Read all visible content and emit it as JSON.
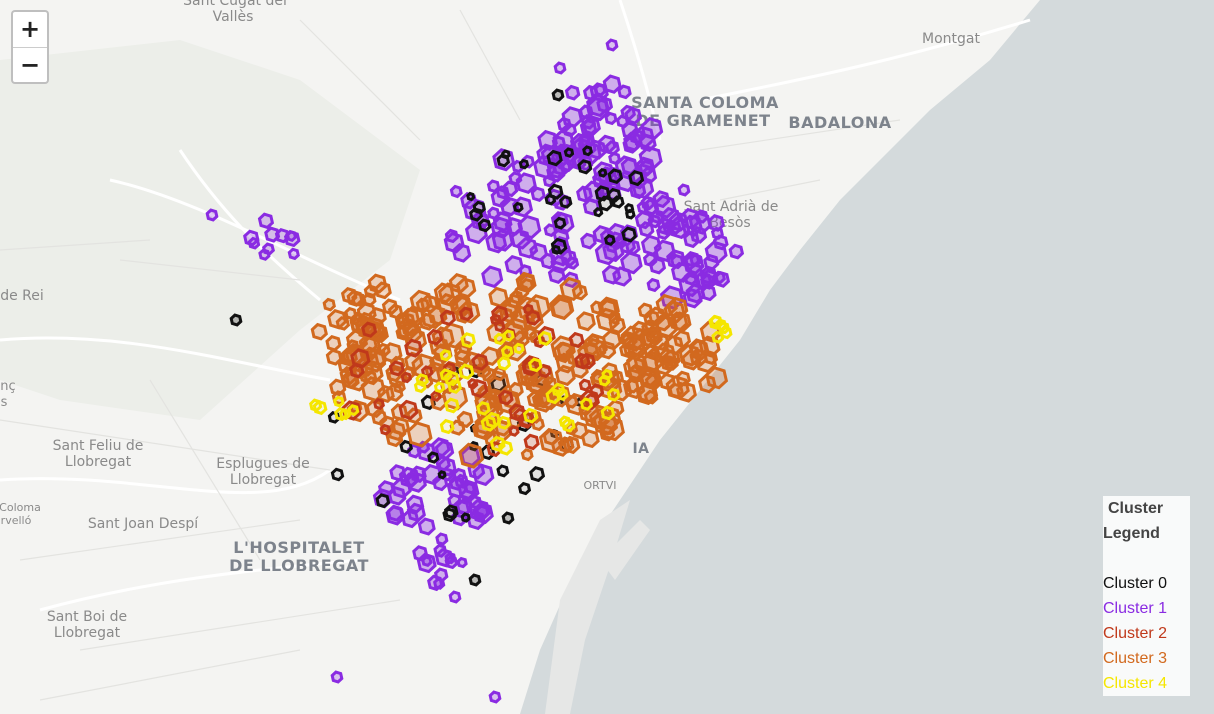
{
  "zoom": {
    "in_label": "+",
    "out_label": "−"
  },
  "places": {
    "sant_cugat": "Sant Cugat del",
    "valles": "Vallès",
    "montgat": "Montgat",
    "santa_coloma_1": "SANTA COLOMA",
    "santa_coloma_2": "DE GRAMENET",
    "badalona": "BADALONA",
    "sant_adria_1": "Sant Adrià de",
    "sant_adria_2": "Besòs",
    "de_rei": "de Rei",
    "sant_feliu_1": "Sant Feliu de",
    "sant_feliu_2": "Llobregat",
    "esplugues_1": "Esplugues de",
    "esplugues_2": "Llobregat",
    "sant_joan": "Sant Joan Despí",
    "hospitalet_1": "L'HOSPITALET",
    "hospitalet_2": "DE LLOBREGAT",
    "sant_boi_1": "Sant Boi de",
    "sant_boi_2": "Llobregat",
    "coloma_w1": "Coloma",
    "coloma_w2": "rvelló",
    "edge_w1": "nç",
    "edge_w2": "s",
    "ia": "IA",
    "ortvi": "ORTVI"
  },
  "legend": {
    "title_line1": "Cluster",
    "title_line2": "Legend",
    "items": [
      {
        "label": "Cluster 0",
        "color": "#111111"
      },
      {
        "label": "Cluster 1",
        "color": "#8a2be2"
      },
      {
        "label": "Cluster 2",
        "color": "#c0391b"
      },
      {
        "label": "Cluster 3",
        "color": "#d2691e"
      },
      {
        "label": "Cluster 4",
        "color": "#f5e600"
      }
    ]
  },
  "colors": {
    "sea": "#d4dadc",
    "land": "#f4f4f2",
    "road": "#ffffff",
    "park": "#e9ece6"
  }
}
